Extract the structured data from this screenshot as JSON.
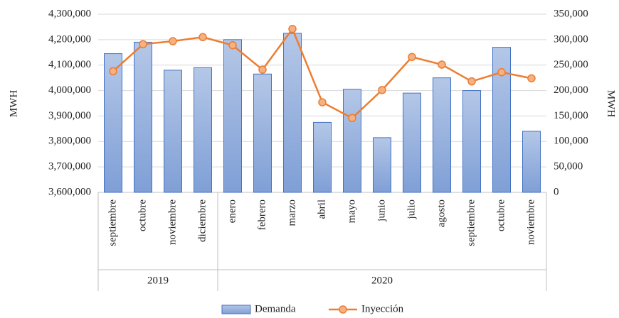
{
  "chart_data": {
    "type": "bar-line",
    "y_label": "MWH",
    "y2_label": "MWH",
    "groups": [
      {
        "name": "2019",
        "categories": [
          "septiembre",
          "octubre",
          "noviembre",
          "diciembre"
        ]
      },
      {
        "name": "2020",
        "categories": [
          "enero",
          "febrero",
          "marzo",
          "abril",
          "mayo",
          "junio",
          "julio",
          "agosto",
          "septiembre",
          "octubre",
          "noviembre"
        ]
      }
    ],
    "series": [
      {
        "name": "Demanda",
        "type": "bar",
        "color": "#8ea9db",
        "edge_color": "#4472c4",
        "values": [
          4145000,
          4190000,
          4080000,
          4090000,
          4200000,
          4065000,
          4225000,
          3875000,
          4005000,
          3815000,
          3990000,
          4050000,
          4000000,
          4170000,
          3840000
        ]
      },
      {
        "name": "Inyección",
        "type": "line",
        "axis": "y2",
        "color": "#ed7d31",
        "marker_color": "#f4b183",
        "values": [
          238000,
          291000,
          297000,
          305000,
          289000,
          241000,
          321000,
          177000,
          146000,
          201000,
          266000,
          251000,
          218000,
          236000,
          224000
        ]
      }
    ],
    "ylim": [
      3600000,
      4300000
    ],
    "yticks": [
      {
        "value": 3600000,
        "label": "3,600,000"
      },
      {
        "value": 3700000,
        "label": "3,700,000"
      },
      {
        "value": 3800000,
        "label": "3,800,000"
      },
      {
        "value": 3900000,
        "label": "3,900,000"
      },
      {
        "value": 4000000,
        "label": "4,000,000"
      },
      {
        "value": 4100000,
        "label": "4,100,000"
      },
      {
        "value": 4200000,
        "label": "4,200,000"
      },
      {
        "value": 4300000,
        "label": "4,300,000"
      }
    ],
    "y2lim": [
      0,
      350000
    ],
    "y2ticks": [
      0,
      {
        "value": 50000,
        "label": "50,000"
      },
      {
        "value": 100000,
        "label": "100,000"
      },
      {
        "value": 150000,
        "label": "150,000"
      },
      {
        "value": 200000,
        "label": "200,000"
      },
      {
        "value": 250000,
        "label": "250,000"
      },
      {
        "value": 300000,
        "label": "300,000"
      },
      {
        "value": 350000,
        "label": "350,000"
      }
    ],
    "grid": true,
    "legend": "bottom"
  }
}
